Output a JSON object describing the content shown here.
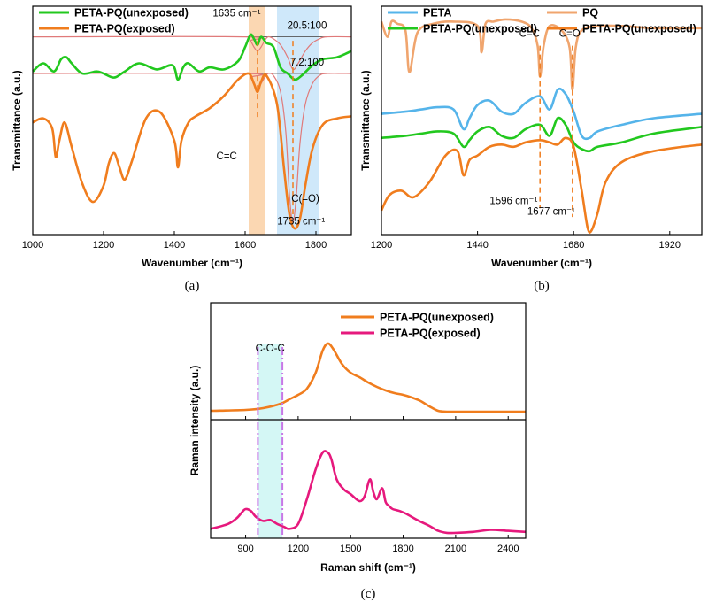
{
  "colors": {
    "green": "#22c81e",
    "orange": "#f07d1e",
    "blue": "#55b4ea",
    "peach": "#f0a56e",
    "magenta": "#e6197d",
    "fit": "#e07a7a",
    "band_orange": "#fbd7b2",
    "band_blue": "#cfe8fa",
    "band_cyan": "#d4f7f5",
    "dash_orange": "#f07d1e",
    "dash_violet": "#c878e6"
  },
  "chart_data": [
    {
      "id": "a",
      "type": "line",
      "panel_label": "(a)",
      "xlabel": "Wavenumber (cm⁻¹)",
      "ylabel": "Transmittance (a.u.)",
      "xlim": [
        1000,
        1900
      ],
      "x_ticks": [
        1000,
        1200,
        1400,
        1600,
        1800
      ],
      "legend": [
        "PETA-PQ(unexposed)",
        "PETA-PQ(exposed)"
      ],
      "series": [
        {
          "name": "PETA-PQ(unexposed)",
          "color": "green",
          "x": [
            1000,
            1030,
            1060,
            1080,
            1095,
            1110,
            1140,
            1180,
            1200,
            1230,
            1260,
            1300,
            1350,
            1395,
            1410,
            1425,
            1440,
            1470,
            1500,
            1540,
            1580,
            1600,
            1615,
            1625,
            1635,
            1645,
            1660,
            1680,
            1700,
            1720,
            1740,
            1760,
            1790,
            1820,
            1860,
            1900
          ],
          "y": [
            0.8,
            0.84,
            0.8,
            0.86,
            0.87,
            0.84,
            0.79,
            0.8,
            0.79,
            0.77,
            0.8,
            0.84,
            0.81,
            0.83,
            0.76,
            0.82,
            0.84,
            0.8,
            0.82,
            0.81,
            0.85,
            0.92,
            0.98,
            0.96,
            0.93,
            0.97,
            0.94,
            0.92,
            0.82,
            0.79,
            0.76,
            0.78,
            0.83,
            0.86,
            0.87,
            0.9
          ]
        },
        {
          "name": "PETA-PQ(exposed)",
          "color": "orange",
          "x": [
            1000,
            1030,
            1055,
            1065,
            1075,
            1090,
            1110,
            1140,
            1170,
            1200,
            1215,
            1230,
            1245,
            1260,
            1280,
            1320,
            1360,
            1400,
            1410,
            1420,
            1440,
            1460,
            1500,
            1540,
            1580,
            1610,
            1625,
            1635,
            1645,
            1660,
            1690,
            1710,
            1725,
            1740,
            1755,
            1770,
            1790,
            1820,
            1860,
            1900
          ],
          "y": [
            0.55,
            0.57,
            0.52,
            0.38,
            0.46,
            0.55,
            0.43,
            0.25,
            0.16,
            0.24,
            0.35,
            0.4,
            0.33,
            0.27,
            0.36,
            0.57,
            0.6,
            0.46,
            0.33,
            0.46,
            0.55,
            0.58,
            0.62,
            0.68,
            0.76,
            0.79,
            0.74,
            0.7,
            0.75,
            0.78,
            0.64,
            0.32,
            0.1,
            0.03,
            0.08,
            0.24,
            0.42,
            0.54,
            0.57,
            0.58
          ]
        },
        {
          "name": "fit-top",
          "color": "fit",
          "x": [
            1000,
            1600,
            1615,
            1625,
            1635,
            1645,
            1655,
            1665,
            1680,
            1700,
            1720,
            1735,
            1750,
            1770,
            1790,
            1810,
            1830,
            1900
          ],
          "y": [
            0.97,
            0.97,
            0.95,
            0.92,
            0.9,
            0.92,
            0.95,
            0.97,
            0.96,
            0.93,
            0.87,
            0.81,
            0.84,
            0.9,
            0.94,
            0.96,
            0.97,
            0.97
          ]
        },
        {
          "name": "fit-bottom",
          "color": "fit",
          "x": [
            1000,
            1600,
            1615,
            1625,
            1635,
            1645,
            1655,
            1665,
            1680,
            1700,
            1715,
            1725,
            1735,
            1745,
            1755,
            1770,
            1790,
            1810,
            1830,
            1900
          ],
          "y": [
            0.79,
            0.79,
            0.77,
            0.74,
            0.71,
            0.74,
            0.77,
            0.79,
            0.78,
            0.7,
            0.5,
            0.2,
            0.06,
            0.2,
            0.45,
            0.64,
            0.74,
            0.78,
            0.79,
            0.79
          ]
        }
      ],
      "baselines": [
        {
          "x": [
            1600,
            1840
          ],
          "y": 0.97
        },
        {
          "x": [
            1600,
            1840
          ],
          "y": 0.79
        }
      ],
      "bands": [
        {
          "x": [
            1610,
            1655
          ],
          "color": "band_orange"
        },
        {
          "x": [
            1690,
            1810
          ],
          "color": "band_blue"
        }
      ],
      "vlines": [
        {
          "x": 1635,
          "y": [
            0.57,
            0.95
          ],
          "color": "dash_orange"
        },
        {
          "x": 1735,
          "y": [
            0.1,
            0.95
          ],
          "color": "dash_orange"
        }
      ],
      "annotations": [
        {
          "text": "1635 cm⁻¹",
          "x": 1576,
          "y": 1.07
        },
        {
          "text": "20.5:100",
          "x": 1775,
          "y": 1.01
        },
        {
          "text": "7.2:100",
          "x": 1775,
          "y": 0.83
        },
        {
          "text": "C=C",
          "x": 1548,
          "y": 0.37
        },
        {
          "text": "C(=O)",
          "x": 1770,
          "y": 0.16
        },
        {
          "text": "1735 cm⁻¹",
          "x": 1758,
          "y": 0.05
        }
      ]
    },
    {
      "id": "b",
      "type": "line",
      "panel_label": "(b)",
      "xlabel": "Wavenumber (cm⁻¹)",
      "ylabel": "Transmittance (a.u.)",
      "xlim": [
        1200,
        2000
      ],
      "x_ticks": [
        1200,
        1440,
        1680,
        1920
      ],
      "legend": [
        "PETA",
        "PQ",
        "PETA-PQ(unexposed)",
        "PETA-PQ(unexposed)"
      ],
      "series": [
        {
          "name": "PETA",
          "color": "blue",
          "x": [
            1200,
            1260,
            1300,
            1340,
            1380,
            1405,
            1420,
            1440,
            1470,
            1500,
            1530,
            1560,
            1596,
            1620,
            1640,
            1660,
            1680,
            1700,
            1720,
            1740,
            1800,
            1880,
            2000
          ],
          "y": [
            0.55,
            0.56,
            0.57,
            0.58,
            0.57,
            0.48,
            0.53,
            0.59,
            0.61,
            0.56,
            0.55,
            0.6,
            0.63,
            0.57,
            0.66,
            0.64,
            0.56,
            0.45,
            0.44,
            0.47,
            0.5,
            0.53,
            0.55
          ]
        },
        {
          "name": "PQ",
          "color": "peach",
          "x": [
            1200,
            1215,
            1225,
            1240,
            1260,
            1270,
            1290,
            1330,
            1380,
            1440,
            1450,
            1460,
            1480,
            1510,
            1550,
            1575,
            1590,
            1596,
            1605,
            1620,
            1650,
            1670,
            1677,
            1685,
            1700,
            1740,
            1800,
            1880,
            2000
          ],
          "y": [
            0.97,
            0.9,
            0.97,
            0.96,
            0.93,
            0.74,
            0.92,
            0.96,
            0.97,
            0.95,
            0.83,
            0.96,
            0.97,
            0.98,
            0.97,
            0.94,
            0.86,
            0.72,
            0.86,
            0.95,
            0.93,
            0.85,
            0.66,
            0.85,
            0.93,
            0.95,
            0.95,
            0.94,
            0.94
          ]
        },
        {
          "name": "PETA-PQ(unexposed)",
          "color": "green",
          "x": [
            1200,
            1260,
            1300,
            1340,
            1380,
            1405,
            1420,
            1440,
            1470,
            1500,
            1530,
            1560,
            1596,
            1620,
            1640,
            1660,
            1680,
            1700,
            1720,
            1740,
            1800,
            1880,
            2000
          ],
          "y": [
            0.44,
            0.45,
            0.46,
            0.47,
            0.46,
            0.4,
            0.43,
            0.47,
            0.49,
            0.45,
            0.44,
            0.48,
            0.5,
            0.45,
            0.53,
            0.5,
            0.42,
            0.39,
            0.38,
            0.4,
            0.42,
            0.46,
            0.49
          ]
        },
        {
          "name": "PETA-PQ(unexposed)",
          "color": "orange",
          "x": [
            1200,
            1220,
            1250,
            1280,
            1320,
            1360,
            1390,
            1405,
            1420,
            1440,
            1470,
            1500,
            1530,
            1560,
            1596,
            1620,
            1640,
            1660,
            1680,
            1700,
            1715,
            1725,
            1740,
            1760,
            1800,
            1880,
            2000
          ],
          "y": [
            0.11,
            0.18,
            0.2,
            0.17,
            0.24,
            0.36,
            0.38,
            0.27,
            0.34,
            0.36,
            0.4,
            0.41,
            0.4,
            0.42,
            0.43,
            0.42,
            0.41,
            0.44,
            0.4,
            0.2,
            0.03,
            0.02,
            0.1,
            0.24,
            0.33,
            0.38,
            0.41
          ]
        }
      ],
      "vlines": [
        {
          "x": 1596,
          "y": [
            0.12,
            0.86
          ],
          "color": "dash_orange"
        },
        {
          "x": 1677,
          "y": [
            0.08,
            0.86
          ],
          "color": "dash_orange"
        }
      ],
      "annotations": [
        {
          "text": "C=C",
          "x": 1570,
          "y": 0.9
        },
        {
          "text": "C=O",
          "x": 1670,
          "y": 0.9
        },
        {
          "text": "1596 cm⁻¹",
          "x": 1530,
          "y": 0.14
        },
        {
          "text": "1677 cm⁻¹",
          "x": 1624,
          "y": 0.09
        }
      ]
    },
    {
      "id": "c",
      "type": "line",
      "panel_label": "(c)",
      "xlabel": "Raman shift (cm⁻¹)",
      "ylabel": "Raman intensity (a.u.)",
      "xlim": [
        700,
        2500
      ],
      "x_ticks": [
        900,
        1200,
        1500,
        1800,
        2100,
        2400
      ],
      "legend": [
        "PETA-PQ(unexposed)",
        "PETA-PQ(exposed)"
      ],
      "series": [
        {
          "name": "PETA-PQ(unexposed)",
          "color": "orange",
          "x": [
            700,
            900,
            1000,
            1100,
            1150,
            1200,
            1250,
            1300,
            1340,
            1370,
            1400,
            1450,
            1500,
            1550,
            1600,
            1650,
            1700,
            1750,
            1800,
            1850,
            1900,
            1950,
            2000,
            2050,
            2100,
            2200,
            2300,
            2400,
            2500
          ],
          "y": [
            0.02,
            0.03,
            0.05,
            0.1,
            0.15,
            0.2,
            0.27,
            0.45,
            0.7,
            0.78,
            0.72,
            0.55,
            0.45,
            0.4,
            0.34,
            0.29,
            0.25,
            0.22,
            0.2,
            0.17,
            0.13,
            0.07,
            0.02,
            0.01,
            0.01,
            0.01,
            0.01,
            0.01,
            0.01
          ]
        },
        {
          "name": "PETA-PQ(exposed)",
          "color": "magenta",
          "x": [
            700,
            800,
            850,
            880,
            900,
            930,
            960,
            1000,
            1040,
            1080,
            1120,
            1150,
            1200,
            1250,
            1300,
            1340,
            1370,
            1390,
            1420,
            1460,
            1500,
            1550,
            1580,
            1610,
            1630,
            1650,
            1680,
            1700,
            1720,
            1740,
            1780,
            1820,
            1880,
            1950,
            2000,
            2050,
            2100,
            2200,
            2300,
            2400,
            2500
          ],
          "y": [
            0.05,
            0.1,
            0.16,
            0.22,
            0.25,
            0.23,
            0.17,
            0.13,
            0.14,
            0.1,
            0.07,
            0.05,
            0.1,
            0.35,
            0.65,
            0.82,
            0.82,
            0.75,
            0.55,
            0.45,
            0.4,
            0.33,
            0.38,
            0.55,
            0.42,
            0.35,
            0.46,
            0.32,
            0.28,
            0.25,
            0.23,
            0.2,
            0.14,
            0.08,
            0.03,
            0.01,
            0.01,
            0.02,
            0.04,
            0.03,
            0.02
          ]
        }
      ],
      "bands": [
        {
          "x": [
            970,
            1110
          ],
          "color": "band_cyan"
        }
      ],
      "vlines": [
        {
          "x": 970,
          "color": "dash_violet"
        },
        {
          "x": 1110,
          "color": "dash_violet"
        }
      ],
      "annotations": [
        {
          "text": "C-O-C",
          "x": 960,
          "y": 0.0
        }
      ]
    }
  ]
}
